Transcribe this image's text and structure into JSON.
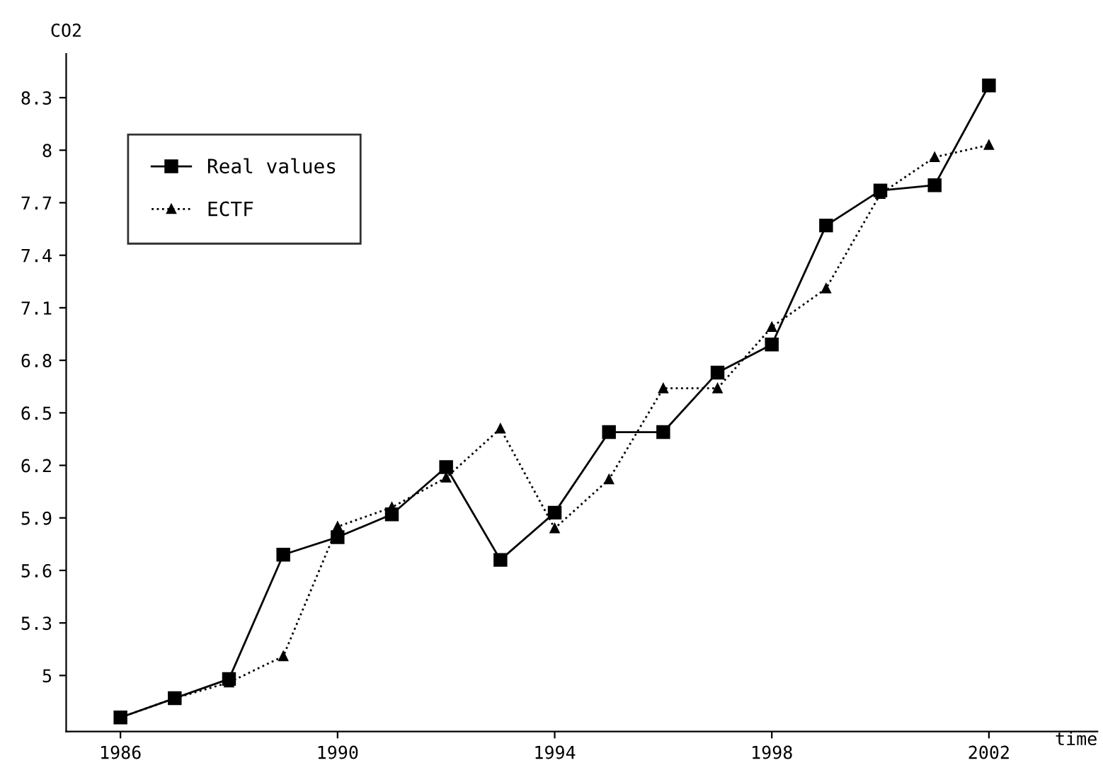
{
  "chart_data": {
    "type": "line",
    "xlabel": "time",
    "ylabel": "CO2",
    "x": [
      1986,
      1987,
      1988,
      1989,
      1990,
      1991,
      1992,
      1993,
      1994,
      1995,
      1996,
      1997,
      1998,
      1999,
      2000,
      2001,
      2002
    ],
    "series": [
      {
        "name": "Real values",
        "color": "#000000",
        "marker": "square",
        "line_style": "solid",
        "values": [
          4.76,
          4.87,
          4.98,
          5.69,
          5.79,
          5.92,
          6.19,
          5.66,
          5.93,
          6.39,
          6.39,
          6.73,
          6.89,
          7.57,
          7.77,
          7.8,
          8.37
        ]
      },
      {
        "name": "ECTF",
        "color": "#000000",
        "marker": "triangle",
        "line_style": "dotted",
        "values": [
          4.76,
          4.87,
          4.96,
          5.11,
          5.85,
          5.96,
          6.13,
          6.41,
          5.84,
          6.12,
          6.64,
          6.64,
          6.99,
          7.21,
          7.75,
          7.96,
          8.03
        ]
      }
    ],
    "xlim": [
      1985,
      2004
    ],
    "ylim": [
      4.68,
      8.55
    ],
    "xticks": [
      1986,
      1990,
      1994,
      1998,
      2002
    ],
    "yticks": [
      5,
      5.3,
      5.6,
      5.9,
      6.2,
      6.5,
      6.8,
      7.1,
      7.4,
      7.7,
      8,
      8.3
    ],
    "legend": "top left",
    "grid": false
  }
}
